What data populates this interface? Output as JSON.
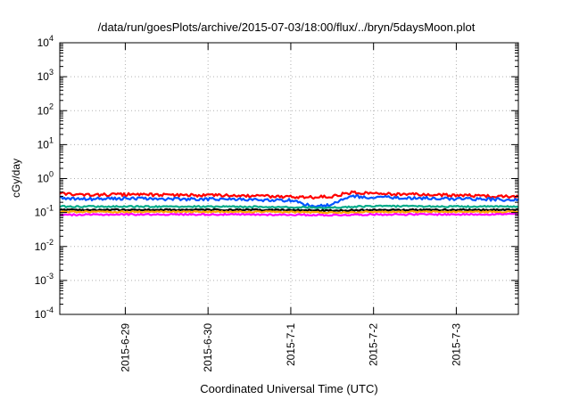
{
  "chart_data": {
    "type": "line",
    "title": "/data/run/goesPlots/archive/2015-07-03/18:00/flux/../bryn/5daysMoon.plot",
    "xlabel": "Coordinated Universal Time (UTC)",
    "ylabel": "cGy/day",
    "x_tick_labels": [
      "2015-6-29",
      "2015-6-30",
      "2015-7-1",
      "2015-7-2",
      "2015-7-3"
    ],
    "x_range": [
      "2015-06-28T05:00",
      "2015-07-03T18:00"
    ],
    "x_ticks": [
      "2015-06-29T00:00",
      "2015-06-30T00:00",
      "2015-07-01T00:00",
      "2015-07-02T00:00",
      "2015-07-03T00:00"
    ],
    "y_scale": "log",
    "ylim": [
      0.0001,
      10000
    ],
    "y_tick_exponents": [
      -4,
      -3,
      -2,
      -1,
      0,
      1,
      2,
      3,
      4
    ],
    "grid": true,
    "legend": "none",
    "series": [
      {
        "color": "#ff0000",
        "x": [
          "2015-06-28T05:00",
          "2015-06-28T12:00",
          "2015-06-29T00:00",
          "2015-06-29T12:00",
          "2015-06-30T00:00",
          "2015-06-30T12:00",
          "2015-07-01T00:00",
          "2015-07-01T06:00",
          "2015-07-01T12:00",
          "2015-07-01T18:00",
          "2015-07-02T00:00",
          "2015-07-02T12:00",
          "2015-07-03T00:00",
          "2015-07-03T18:00"
        ],
        "values": [
          0.36,
          0.33,
          0.34,
          0.33,
          0.32,
          0.31,
          0.29,
          0.28,
          0.3,
          0.4,
          0.36,
          0.34,
          0.32,
          0.29
        ]
      },
      {
        "color": "#0055ff",
        "x": [
          "2015-06-28T05:00",
          "2015-06-28T12:00",
          "2015-06-29T00:00",
          "2015-06-29T12:00",
          "2015-06-30T00:00",
          "2015-06-30T12:00",
          "2015-07-01T00:00",
          "2015-07-01T06:00",
          "2015-07-01T12:00",
          "2015-07-01T18:00",
          "2015-07-02T00:00",
          "2015-07-02T12:00",
          "2015-07-03T00:00",
          "2015-07-03T18:00"
        ],
        "values": [
          0.27,
          0.25,
          0.26,
          0.25,
          0.25,
          0.24,
          0.23,
          0.15,
          0.17,
          0.3,
          0.28,
          0.27,
          0.25,
          0.24
        ]
      },
      {
        "color": "#00aa88",
        "x": [
          "2015-06-28T05:00",
          "2015-06-29T00:00",
          "2015-06-30T00:00",
          "2015-07-01T00:00",
          "2015-07-01T12:00",
          "2015-07-02T00:00",
          "2015-07-03T00:00",
          "2015-07-03T18:00"
        ],
        "values": [
          0.15,
          0.15,
          0.15,
          0.145,
          0.14,
          0.155,
          0.15,
          0.15
        ]
      },
      {
        "color": "#000000",
        "x": [
          "2015-06-28T05:00",
          "2015-06-29T00:00",
          "2015-06-30T00:00",
          "2015-07-01T00:00",
          "2015-07-01T12:00",
          "2015-07-02T00:00",
          "2015-07-03T00:00",
          "2015-07-03T18:00"
        ],
        "values": [
          0.12,
          0.12,
          0.12,
          0.118,
          0.115,
          0.12,
          0.12,
          0.12
        ]
      },
      {
        "color": "#ffaa00",
        "x": [
          "2015-06-28T05:00",
          "2015-06-29T00:00",
          "2015-06-30T00:00",
          "2015-07-01T00:00",
          "2015-07-01T12:00",
          "2015-07-02T00:00",
          "2015-07-03T00:00",
          "2015-07-03T18:00"
        ],
        "values": [
          0.105,
          0.105,
          0.105,
          0.104,
          0.1,
          0.105,
          0.105,
          0.105
        ]
      },
      {
        "color": "#ff00ff",
        "x": [
          "2015-06-28T05:00",
          "2015-06-29T00:00",
          "2015-06-30T00:00",
          "2015-07-01T00:00",
          "2015-07-01T12:00",
          "2015-07-02T00:00",
          "2015-07-03T00:00",
          "2015-07-03T18:00"
        ],
        "values": [
          0.085,
          0.088,
          0.088,
          0.086,
          0.084,
          0.088,
          0.088,
          0.09
        ]
      }
    ]
  }
}
